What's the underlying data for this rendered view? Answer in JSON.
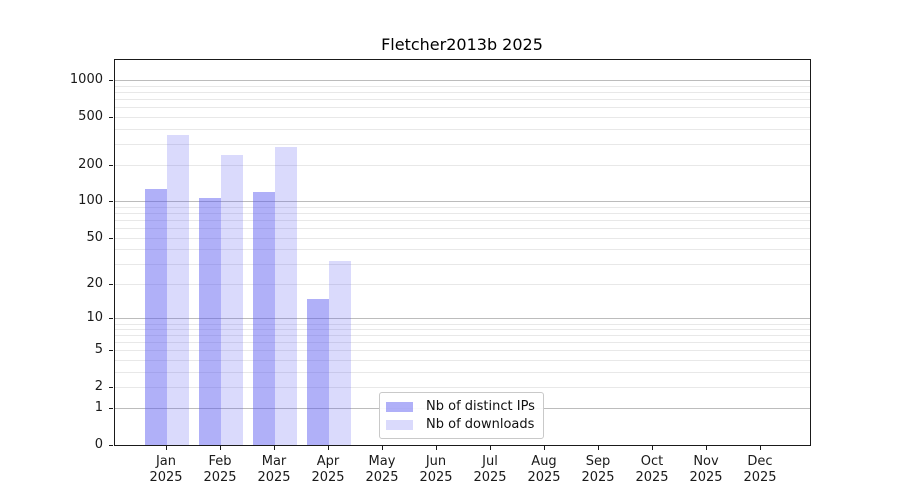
{
  "chart_data": {
    "type": "bar",
    "title": "Fletcher2013b 2025",
    "months": [
      "Jan",
      "Feb",
      "Mar",
      "Apr",
      "May",
      "Jun",
      "Jul",
      "Aug",
      "Sep",
      "Oct",
      "Nov",
      "Dec"
    ],
    "year": "2025",
    "series": [
      {
        "name": "Nb of distinct IPs",
        "fill": "rgba(88,88,240,0.47)",
        "values": [
          128,
          107,
          120,
          15,
          0,
          0,
          0,
          0,
          0,
          0,
          0,
          0
        ]
      },
      {
        "name": "Nb of downloads",
        "fill": "rgba(88,88,240,0.22)",
        "values": [
          355,
          244,
          282,
          32,
          0,
          0,
          0,
          0,
          0,
          0,
          0,
          0
        ]
      }
    ],
    "yscale": "log10(1+y)",
    "y_tick_values": [
      0,
      1,
      2,
      5,
      10,
      20,
      50,
      100,
      200,
      500,
      1000
    ],
    "y_major_gridlines": [
      1,
      10,
      100,
      1000
    ],
    "y_minor_gridlines": [
      2,
      3,
      4,
      5,
      6,
      7,
      8,
      9,
      20,
      30,
      40,
      50,
      60,
      70,
      80,
      90,
      200,
      300,
      400,
      500,
      600,
      700,
      800,
      900
    ],
    "ylim": [
      0,
      1470
    ],
    "grid": "horizontal",
    "legend_position": "lower center",
    "colors": {
      "major_grid": "#bcbcbc",
      "minor_grid": "#e8e8e8",
      "axis": "#1a1a1a",
      "title_text": "#000000"
    }
  }
}
